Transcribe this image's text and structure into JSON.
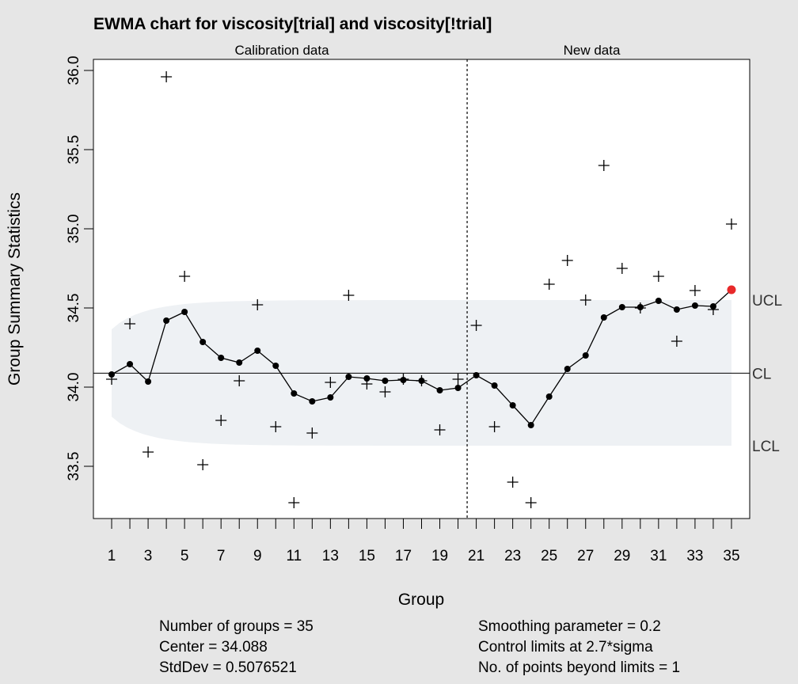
{
  "chart_data": {
    "type": "line",
    "title": "EWMA chart for viscosity[trial] and viscosity[!trial]",
    "xlabel": "Group",
    "ylabel": "Group Summary Statistics",
    "section_labels": [
      "Calibration data",
      "New data"
    ],
    "calibration_groups": 20,
    "xlim": [
      0,
      36
    ],
    "ylim": [
      33.17,
      36.07
    ],
    "x_ticks": [
      1,
      3,
      5,
      7,
      9,
      11,
      13,
      15,
      17,
      19,
      21,
      23,
      25,
      27,
      29,
      31,
      33,
      35
    ],
    "y_ticks": [
      "33.5",
      "34.0",
      "34.5",
      "35.0",
      "35.5",
      "36.0"
    ],
    "groups": [
      1,
      2,
      3,
      4,
      5,
      6,
      7,
      8,
      9,
      10,
      11,
      12,
      13,
      14,
      15,
      16,
      17,
      18,
      19,
      20,
      21,
      22,
      23,
      24,
      25,
      26,
      27,
      28,
      29,
      30,
      31,
      32,
      33,
      34,
      35
    ],
    "series": [
      {
        "name": "Group statistics",
        "marker": "+",
        "values": [
          34.05,
          34.4,
          33.59,
          35.96,
          34.7,
          33.51,
          33.79,
          34.04,
          34.52,
          33.75,
          33.27,
          33.71,
          34.03,
          34.58,
          34.02,
          33.97,
          34.05,
          34.04,
          33.73,
          34.05,
          34.39,
          33.75,
          33.4,
          33.27,
          34.65,
          34.8,
          34.55,
          35.4,
          34.75,
          34.5,
          34.7,
          34.29,
          34.61,
          34.49,
          35.03
        ]
      },
      {
        "name": "EWMA",
        "marker": "dot",
        "values": [
          34.08,
          34.145,
          34.035,
          34.42,
          34.475,
          34.285,
          34.185,
          34.155,
          34.23,
          34.135,
          33.96,
          33.91,
          33.935,
          34.065,
          34.055,
          34.04,
          34.045,
          34.04,
          33.98,
          33.995,
          34.075,
          34.01,
          33.885,
          33.76,
          33.94,
          34.115,
          34.2,
          34.44,
          34.505,
          34.505,
          34.545,
          34.49,
          34.515,
          34.51,
          34.615
        ]
      }
    ],
    "center_line": 34.088,
    "ucl_limit": 34.55,
    "lcl_limit": 33.63,
    "limit_labels": {
      "ucl": "UCL",
      "cl": "CL",
      "lcl": "LCL"
    },
    "violating_points": [
      35
    ],
    "colors": {
      "violation": "#e8292a",
      "band": "#eef1f4",
      "background": "#e6e6e6",
      "plot_bg": "#ffffff"
    }
  },
  "stats": {
    "left": [
      "Number of groups = 35",
      "Center = 34.088",
      "StdDev = 0.5076521"
    ],
    "right": [
      "Smoothing parameter =  0.2",
      "Control limits at 2.7*sigma",
      "No. of points beyond limits = 1"
    ]
  }
}
